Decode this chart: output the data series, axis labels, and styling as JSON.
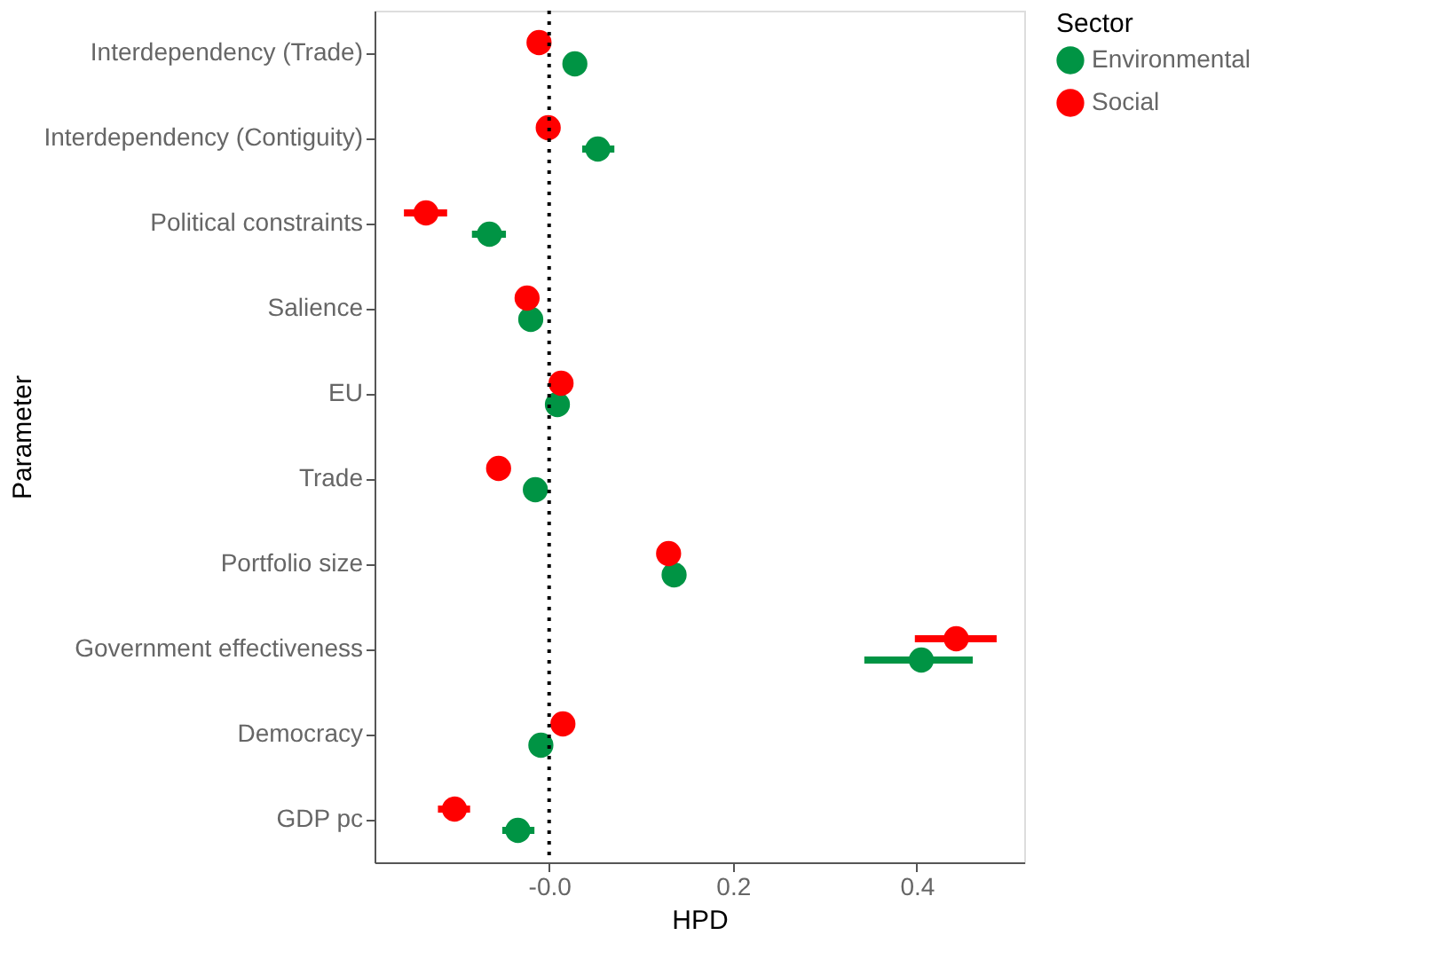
{
  "chart_data": {
    "type": "scatter",
    "orientation": "horizontal",
    "xlabel": "HPD",
    "ylabel": "Parameter",
    "legend_title": "Sector",
    "legend": "right",
    "grid": false,
    "marker": "circle",
    "categories": [
      "Interdependency (Trade)",
      "Interdependency (Contiguity)",
      "Political constraints",
      "Salience",
      "EU",
      "Trade",
      "Portfolio size",
      "Government effectiveness",
      "Democracy",
      "GDP pc"
    ],
    "xlim": [
      -0.19,
      0.517
    ],
    "xticks": [
      {
        "value": 0,
        "label": "-0.0"
      },
      0.2,
      0.4
    ],
    "ref_lines": [
      {
        "axis": "x",
        "value": 0,
        "line_style": "dotted",
        "color": "#000000"
      }
    ],
    "series": [
      {
        "name": "Environmental",
        "color": "#009444",
        "values": [
          0.028,
          0.053,
          -0.065,
          -0.02,
          0.009,
          -0.015,
          0.136,
          0.405,
          -0.009,
          -0.034
        ],
        "errors": [
          null,
          [
            0.036,
            0.071
          ],
          [
            -0.084,
            -0.047
          ],
          null,
          null,
          null,
          null,
          [
            0.343,
            0.461
          ],
          null,
          [
            -0.051,
            -0.016
          ]
        ]
      },
      {
        "name": "Social",
        "color": "#ff0000",
        "values": [
          -0.011,
          -0.001,
          -0.134,
          -0.024,
          0.013,
          -0.055,
          0.13,
          0.443,
          0.015,
          -0.103
        ],
        "errors": [
          null,
          null,
          [
            -0.158,
            -0.111
          ],
          null,
          null,
          null,
          null,
          [
            0.398,
            0.487
          ],
          null,
          [
            -0.121,
            -0.086
          ]
        ]
      }
    ]
  }
}
